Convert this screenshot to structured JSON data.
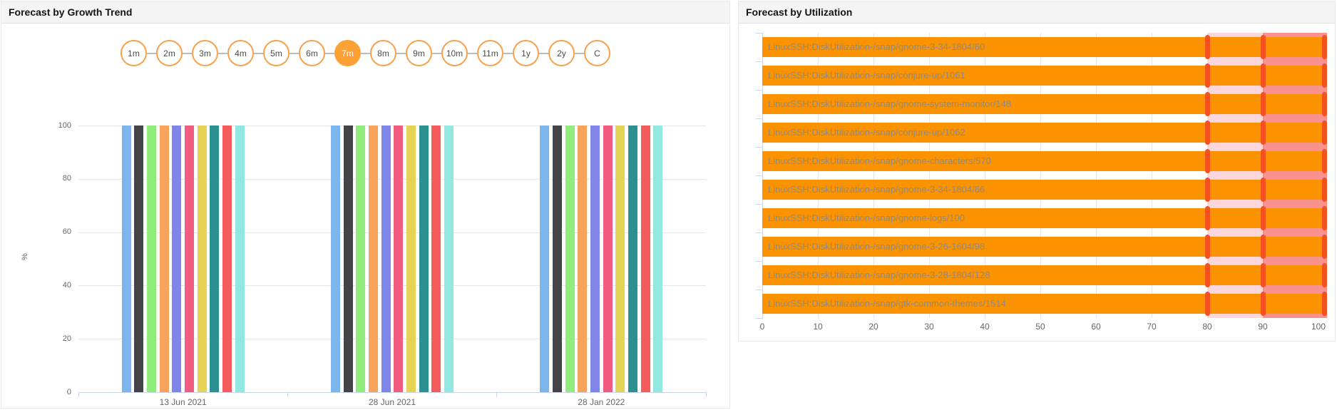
{
  "left_panel": {
    "title": "Forecast by Growth Trend",
    "selector": {
      "options": [
        "1m",
        "2m",
        "3m",
        "4m",
        "5m",
        "6m",
        "7m",
        "8m",
        "9m",
        "10m",
        "11m",
        "1y",
        "2y",
        "C"
      ],
      "selected": "7m",
      "circle_border_color": "#f7a14e",
      "selected_fill_color": "#fba136"
    }
  },
  "right_panel": {
    "title": "Forecast by Utilization"
  },
  "chart_data": [
    {
      "type": "bar",
      "orientation": "vertical",
      "title": "Forecast by Growth Trend",
      "categories": [
        "13 Jun 2021",
        "28 Jun 2021",
        "28 Jan 2022"
      ],
      "series": [
        {
          "color": "#7cb5ec",
          "values": [
            100,
            100,
            100
          ]
        },
        {
          "color": "#434348",
          "values": [
            100,
            100,
            100
          ]
        },
        {
          "color": "#90ed7d",
          "values": [
            100,
            100,
            100
          ]
        },
        {
          "color": "#f7a35c",
          "values": [
            100,
            100,
            100
          ]
        },
        {
          "color": "#8085e9",
          "values": [
            100,
            100,
            100
          ]
        },
        {
          "color": "#f15c80",
          "values": [
            100,
            100,
            100
          ]
        },
        {
          "color": "#e4d354",
          "values": [
            100,
            100,
            100
          ]
        },
        {
          "color": "#2b908f",
          "values": [
            100,
            100,
            100
          ]
        },
        {
          "color": "#f45b5b",
          "values": [
            100,
            100,
            100
          ]
        },
        {
          "color": "#91e8e1",
          "values": [
            100,
            100,
            100
          ]
        }
      ],
      "xlabel": "",
      "ylabel": "%",
      "ylim": [
        0,
        100
      ],
      "yticks": [
        0,
        20,
        40,
        60,
        80,
        100
      ],
      "grid": true,
      "legend": "none"
    },
    {
      "type": "bar",
      "orientation": "horizontal",
      "title": "Forecast by Utilization",
      "categories": [
        "LinuxSSH:DiskUtilization-/snap/gnome-3-34-1804/60",
        "LinuxSSH:DiskUtilization-/snap/conjure-up/1061",
        "LinuxSSH:DiskUtilization-/snap/gnome-system-monitor/148",
        "LinuxSSH:DiskUtilization-/snap/conjure-up/1062",
        "LinuxSSH:DiskUtilization-/snap/gnome-characters/570",
        "LinuxSSH:DiskUtilization-/snap/gnome-3-34-1804/66",
        "LinuxSSH:DiskUtilization-/snap/gnome-logs/100",
        "LinuxSSH:DiskUtilization-/snap/gnome-3-26-1604/98",
        "LinuxSSH:DiskUtilization-/snap/gnome-3-28-1804/128",
        "LinuxSSH:DiskUtilization-/snap/gtk-common-themes/1514"
      ],
      "values": [
        100,
        100,
        100,
        100,
        100,
        100,
        100,
        100,
        100,
        100
      ],
      "xlim": [
        0,
        100
      ],
      "xticks": [
        0,
        10,
        20,
        30,
        40,
        50,
        60,
        70,
        80,
        90,
        100
      ],
      "grid": true,
      "legend": "none",
      "bar_color": "#fb9300",
      "bar_label_color": "#8a8a8a",
      "plot_bands": [
        {
          "from": 80,
          "to": 90,
          "color": "#fcd6da",
          "name": "warning-band"
        },
        {
          "from": 90,
          "to": 100,
          "color": "#f9918f",
          "name": "critical-band"
        }
      ],
      "marker_positions": [
        80,
        90,
        100
      ],
      "marker_color": "#f4511e"
    }
  ]
}
